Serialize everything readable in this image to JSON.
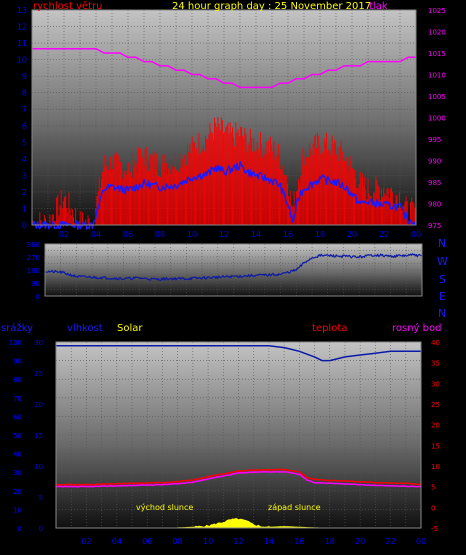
{
  "header": {
    "title": "24 hour graph day : 25 November 2017",
    "wind_label": "rychlost větru",
    "pressure_label": "tlak"
  },
  "mid": {
    "compass": [
      "N",
      "W",
      "S",
      "E",
      "N"
    ]
  },
  "bottom_header": {
    "rain_label": "srážky",
    "humidity_label": "vlhkost",
    "solar_label": "Solar",
    "temp_label": "teplota",
    "dew_label": "rosný bod"
  },
  "annotations": {
    "sunrise": "východ slunce",
    "sunset": "západ slunce"
  },
  "colors": {
    "wind_avg": "#1a1aff",
    "wind_gust": "#ff0000",
    "pressure": "#ff00ff",
    "direction": "#0a1aa8",
    "humidity": "#0a1aa8",
    "temperature": "#ff0000",
    "dew_point": "#ff00ff",
    "solar": "#ffff00",
    "left_axis": "#0000ff",
    "right_axis": "#ff00ff",
    "temp_axis": "#ff0000"
  },
  "chart_data": [
    {
      "type": "line",
      "title": "24 hour graph day : 25 November 2017",
      "x_ticks": [
        "02",
        "04",
        "06",
        "08",
        "10",
        "12",
        "14",
        "16",
        "18",
        "20",
        "22",
        "00"
      ],
      "y_left_label": "rychlost větru",
      "y_left_ticks": [
        0,
        1,
        2,
        3,
        4,
        5,
        6,
        7,
        8,
        9,
        10,
        11,
        12,
        13
      ],
      "ylim_left": [
        0,
        13
      ],
      "y_right_label": "tlak",
      "y_right_ticks": [
        975,
        980,
        985,
        990,
        995,
        1000,
        1005,
        1010,
        1015,
        1020,
        1025
      ],
      "ylim_right": [
        975,
        1025
      ],
      "series": [
        {
          "name": "rychlost větru",
          "axis": "left",
          "x": [
            0,
            1,
            2,
            3,
            3.8,
            4.5,
            5,
            6,
            7,
            8,
            9,
            10,
            11,
            11.5,
            12,
            12.5,
            13,
            13.5,
            14,
            15,
            15.5,
            16,
            16.3,
            16.7,
            17,
            18,
            19,
            19.7,
            20.5,
            21,
            22,
            23,
            23.5,
            24
          ],
          "values": [
            0,
            0,
            0,
            0,
            0,
            2.2,
            2.3,
            2.1,
            2.5,
            2.3,
            2.4,
            2.9,
            3.1,
            3.5,
            3.2,
            3.4,
            3.6,
            3.2,
            3.0,
            2.7,
            2.4,
            1.2,
            0.2,
            1.8,
            2.2,
            2.8,
            2.6,
            2.2,
            1.3,
            1.4,
            1.2,
            1.1,
            0.3,
            0.2
          ]
        },
        {
          "name": "wind gust",
          "axis": "left",
          "x": [
            0,
            1,
            2,
            3,
            3.8,
            4.5,
            5,
            6,
            7,
            8,
            9,
            10,
            11,
            11.5,
            12,
            12.5,
            13,
            13.5,
            14,
            15,
            15.5,
            16,
            16.3,
            16.7,
            17,
            18,
            19,
            19.7,
            20.5,
            21,
            22,
            23,
            23.5,
            24
          ],
          "values": [
            0,
            0,
            1.5,
            0,
            0,
            3.5,
            3.6,
            3.3,
            4.0,
            3.5,
            3.7,
            4.5,
            5.2,
            5.8,
            5.5,
            5.2,
            5.4,
            4.9,
            4.8,
            4.5,
            4.0,
            2.5,
            0.8,
            3.0,
            4.2,
            4.8,
            4.5,
            3.8,
            2.4,
            2.0,
            2.1,
            1.6,
            0.6,
            0.8
          ]
        },
        {
          "name": "tlak",
          "axis": "right",
          "x": [
            0,
            1,
            1.5,
            2,
            2.5,
            3,
            3.5,
            4,
            4.5,
            5,
            5.5,
            6,
            6.5,
            7,
            7.5,
            8,
            8.5,
            9,
            9.5,
            10,
            10.5,
            11,
            11.5,
            12,
            12.5,
            13,
            13.5,
            14,
            14.5,
            15,
            15.5,
            16,
            16.5,
            17,
            17.5,
            18,
            18.5,
            19,
            19.5,
            20,
            20.5,
            21,
            21.5,
            22,
            22.5,
            23,
            23.5,
            24
          ],
          "values": [
            1016,
            1016,
            1016,
            1016,
            1016,
            1016,
            1016,
            1016,
            1015,
            1015,
            1015,
            1014,
            1014,
            1013,
            1013,
            1012,
            1012,
            1011,
            1011,
            1010,
            1010,
            1009,
            1009,
            1008,
            1008,
            1007,
            1007,
            1007,
            1007,
            1007,
            1008,
            1008,
            1009,
            1009,
            1010,
            1010,
            1011,
            1011,
            1012,
            1012,
            1012,
            1013,
            1013,
            1013,
            1013,
            1013,
            1014,
            1014
          ]
        }
      ]
    },
    {
      "type": "line",
      "x_ticks": [
        "02",
        "04",
        "06",
        "08",
        "10",
        "12",
        "14",
        "16",
        "18",
        "20",
        "22",
        "00"
      ],
      "y_ticks": [
        0,
        45,
        90,
        135,
        180,
        225,
        270,
        315,
        360
      ],
      "y_tick_labels": [
        "0",
        "",
        "90",
        "",
        "180",
        "",
        "270",
        "",
        "360"
      ],
      "ylim": [
        0,
        360
      ],
      "compass_labels": [
        "N",
        "W",
        "S",
        "E",
        "N"
      ],
      "series": [
        {
          "name": "wind direction",
          "x": [
            0,
            1,
            1.5,
            2,
            3,
            4,
            5,
            6,
            7,
            8,
            9,
            10,
            11,
            12,
            13,
            14,
            15,
            15.5,
            16,
            16.5,
            17,
            17.5,
            18,
            19,
            20,
            21,
            22,
            23,
            23.5,
            24
          ],
          "values": [
            170,
            165,
            150,
            135,
            130,
            125,
            120,
            125,
            115,
            120,
            120,
            125,
            130,
            135,
            140,
            145,
            150,
            165,
            180,
            230,
            265,
            280,
            280,
            275,
            270,
            285,
            275,
            280,
            285,
            275
          ]
        }
      ]
    },
    {
      "type": "line",
      "x_ticks": [
        "02",
        "04",
        "06",
        "08",
        "10",
        "12",
        "14",
        "16",
        "18",
        "20",
        "22",
        "00"
      ],
      "y_left_ticks": [
        0,
        10,
        20,
        30,
        40,
        50,
        60,
        70,
        80,
        90,
        100
      ],
      "ylim_left": [
        0,
        100
      ],
      "y_left2_ticks": [
        0,
        5,
        10,
        15,
        20,
        25,
        30
      ],
      "ylim_left2": [
        0,
        30
      ],
      "y_right_ticks": [
        -5,
        0,
        5,
        10,
        15,
        20,
        25,
        30,
        35,
        40
      ],
      "ylim_right": [
        -5,
        40
      ],
      "series": [
        {
          "name": "vlhkost",
          "axis": "left",
          "x": [
            0,
            2,
            4,
            6,
            8,
            10,
            12,
            14,
            15,
            15.5,
            16,
            17,
            17.5,
            18,
            19,
            20,
            21,
            22,
            23,
            24
          ],
          "values": [
            98,
            98,
            98,
            98,
            98,
            98,
            98,
            98,
            97,
            96,
            95,
            92,
            90,
            90,
            92,
            93,
            94,
            95,
            95,
            95
          ]
        },
        {
          "name": "teplota",
          "axis": "right",
          "x": [
            0,
            1,
            2,
            3,
            4,
            5,
            6,
            7,
            8,
            9,
            10,
            11,
            12,
            13,
            14,
            15,
            16,
            16.5,
            17,
            18,
            19,
            20,
            21,
            22,
            23,
            24
          ],
          "values": [
            5.5,
            5.5,
            5.5,
            5.6,
            5.7,
            5.8,
            5.9,
            6.0,
            6.2,
            6.6,
            7.4,
            8.1,
            8.8,
            9.0,
            9.1,
            9.1,
            8.6,
            7.2,
            6.8,
            6.5,
            6.4,
            6.2,
            6.0,
            5.9,
            5.8,
            5.5
          ]
        },
        {
          "name": "rosný bod",
          "axis": "right",
          "x": [
            0,
            1,
            2,
            3,
            4,
            5,
            6,
            7,
            8,
            9,
            10,
            11,
            12,
            13,
            14,
            15,
            16,
            16.5,
            17,
            18,
            19,
            20,
            21,
            22,
            23,
            24
          ],
          "values": [
            5.0,
            5.0,
            5.0,
            5.1,
            5.2,
            5.3,
            5.4,
            5.5,
            5.7,
            6.1,
            6.9,
            7.6,
            8.3,
            8.5,
            8.6,
            8.6,
            8.0,
            6.6,
            6.0,
            5.8,
            5.7,
            5.5,
            5.3,
            5.2,
            5.1,
            5.0
          ]
        },
        {
          "name": "Solar",
          "axis": "left2",
          "x": [
            0,
            7.5,
            8,
            9,
            10,
            10.5,
            11,
            11.5,
            12,
            12.5,
            13,
            13.5,
            14,
            15,
            16,
            17,
            18,
            20,
            22,
            24
          ],
          "values": [
            0,
            0,
            0.1,
            0.2,
            0.4,
            0.7,
            1.0,
            1.4,
            1.5,
            1.2,
            0.6,
            0.3,
            0.2,
            0.3,
            0.2,
            0.1,
            0.05,
            0,
            0,
            0
          ]
        },
        {
          "name": "srážky",
          "axis": "left",
          "x": [
            0,
            24
          ],
          "values": [
            0,
            0
          ]
        }
      ]
    }
  ]
}
